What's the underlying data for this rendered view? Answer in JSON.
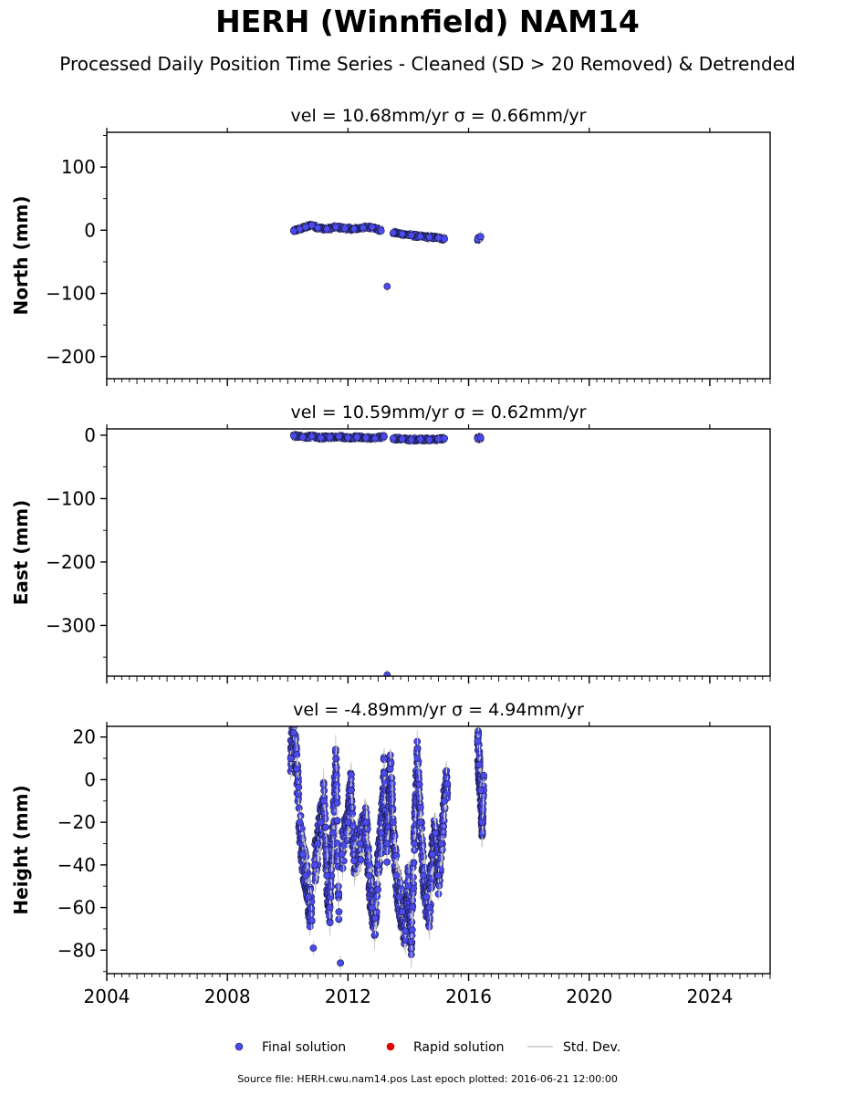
{
  "figure": {
    "title": "HERH (Winnfield) NAM14",
    "subtitle": "Processed Daily Position Time Series - Cleaned (SD > 20 Removed) & Detrended",
    "source_text": "Source file: HERH.cwu.nam14.pos  Last epoch plotted: 2016-06-21 12:00:00"
  },
  "colors": {
    "final": "#4a4af0",
    "final_edge": "#1a1a40",
    "rapid": "#e00000",
    "stddev": "#c8c8c8"
  },
  "legend": {
    "placement": "bottom-center",
    "items": [
      {
        "label": "Final solution",
        "marker": "circle",
        "color": "#4a4af0"
      },
      {
        "label": "Rapid solution",
        "marker": "circle",
        "color": "#e00000"
      },
      {
        "label": "Std. Dev.",
        "marker": "line",
        "color": "#c8c8c8"
      }
    ]
  },
  "chart_data": [
    {
      "type": "scatter",
      "title": "vel = 10.68mm/yr   σ = 0.66mm/yr",
      "ylabel": "North (mm)",
      "xlim": [
        2004,
        2026
      ],
      "ylim": [
        -235,
        155
      ],
      "yticks": [
        100,
        0,
        -100,
        -200
      ],
      "xtick_labels_shown": false,
      "series": [
        {
          "x": 2010.2,
          "y": -1
        },
        {
          "x": 2010.4,
          "y": 2
        },
        {
          "x": 2010.6,
          "y": 5
        },
        {
          "x": 2010.8,
          "y": 8
        },
        {
          "x": 2011.0,
          "y": 4
        },
        {
          "x": 2011.3,
          "y": 2
        },
        {
          "x": 2011.6,
          "y": 5
        },
        {
          "x": 2011.9,
          "y": 3
        },
        {
          "x": 2012.2,
          "y": 2
        },
        {
          "x": 2012.5,
          "y": 4
        },
        {
          "x": 2012.8,
          "y": 5
        },
        {
          "x": 2013.1,
          "y": -1
        },
        {
          "x": 2013.3,
          "y": -89
        },
        {
          "x": 2013.5,
          "y": -4
        },
        {
          "x": 2013.8,
          "y": -6
        },
        {
          "x": 2014.1,
          "y": -8
        },
        {
          "x": 2014.4,
          "y": -10
        },
        {
          "x": 2014.7,
          "y": -11
        },
        {
          "x": 2015.0,
          "y": -12
        },
        {
          "x": 2015.2,
          "y": -14
        },
        {
          "x": 2016.3,
          "y": -14
        },
        {
          "x": 2016.4,
          "y": -10
        }
      ]
    },
    {
      "type": "scatter",
      "title": "vel = 10.59mm/yr   σ = 0.62mm/yr",
      "ylabel": "East (mm)",
      "xlim": [
        2004,
        2026
      ],
      "ylim": [
        -380,
        10
      ],
      "yticks": [
        0,
        -100,
        -200,
        -300
      ],
      "xtick_labels_shown": false,
      "series": [
        {
          "x": 2010.2,
          "y": -1
        },
        {
          "x": 2010.5,
          "y": -3
        },
        {
          "x": 2010.8,
          "y": -2
        },
        {
          "x": 2011.1,
          "y": -4
        },
        {
          "x": 2011.4,
          "y": -3
        },
        {
          "x": 2011.7,
          "y": -2
        },
        {
          "x": 2012.0,
          "y": -4
        },
        {
          "x": 2012.3,
          "y": -3
        },
        {
          "x": 2012.6,
          "y": -4
        },
        {
          "x": 2012.9,
          "y": -5
        },
        {
          "x": 2013.2,
          "y": -2
        },
        {
          "x": 2013.3,
          "y": -378
        },
        {
          "x": 2013.5,
          "y": -5
        },
        {
          "x": 2013.8,
          "y": -6
        },
        {
          "x": 2014.1,
          "y": -7
        },
        {
          "x": 2014.4,
          "y": -6
        },
        {
          "x": 2014.7,
          "y": -7
        },
        {
          "x": 2015.0,
          "y": -6
        },
        {
          "x": 2015.2,
          "y": -5
        },
        {
          "x": 2016.3,
          "y": -5
        },
        {
          "x": 2016.4,
          "y": -4
        }
      ]
    },
    {
      "type": "scatter",
      "title": "vel = -4.89mm/yr   σ = 4.94mm/yr",
      "ylabel": "Height (mm)",
      "xlabel": "",
      "xlim": [
        2004,
        2026
      ],
      "ylim": [
        -91,
        25
      ],
      "yticks": [
        20,
        0,
        -20,
        -40,
        -60,
        -80
      ],
      "xticks": [
        2004,
        2008,
        2012,
        2016,
        2020,
        2024
      ],
      "xtick_labels_shown": true,
      "series": [
        {
          "x": 2010.1,
          "y": 10
        },
        {
          "x": 2010.2,
          "y": 22
        },
        {
          "x": 2010.3,
          "y": 5
        },
        {
          "x": 2010.4,
          "y": -20
        },
        {
          "x": 2010.5,
          "y": -35
        },
        {
          "x": 2010.6,
          "y": -45
        },
        {
          "x": 2010.7,
          "y": -55
        },
        {
          "x": 2010.8,
          "y": -66
        },
        {
          "x": 2010.85,
          "y": -79
        },
        {
          "x": 2010.9,
          "y": -40
        },
        {
          "x": 2011.0,
          "y": -30
        },
        {
          "x": 2011.1,
          "y": -20
        },
        {
          "x": 2011.2,
          "y": -10
        },
        {
          "x": 2011.3,
          "y": -45
        },
        {
          "x": 2011.4,
          "y": -60
        },
        {
          "x": 2011.5,
          "y": -25
        },
        {
          "x": 2011.6,
          "y": 10
        },
        {
          "x": 2011.7,
          "y": -62
        },
        {
          "x": 2011.75,
          "y": -86
        },
        {
          "x": 2011.8,
          "y": -35
        },
        {
          "x": 2012.0,
          "y": -20
        },
        {
          "x": 2012.1,
          "y": -5
        },
        {
          "x": 2012.2,
          "y": -38
        },
        {
          "x": 2012.4,
          "y": -30
        },
        {
          "x": 2012.6,
          "y": -20
        },
        {
          "x": 2012.7,
          "y": -45
        },
        {
          "x": 2012.8,
          "y": -60
        },
        {
          "x": 2012.9,
          "y": -65
        },
        {
          "x": 2013.0,
          "y": -40
        },
        {
          "x": 2013.1,
          "y": -25
        },
        {
          "x": 2013.2,
          "y": 3
        },
        {
          "x": 2013.3,
          "y": -30
        },
        {
          "x": 2013.4,
          "y": 5
        },
        {
          "x": 2013.5,
          "y": -20
        },
        {
          "x": 2013.6,
          "y": -45
        },
        {
          "x": 2013.7,
          "y": -55
        },
        {
          "x": 2013.8,
          "y": -62
        },
        {
          "x": 2013.9,
          "y": -71
        },
        {
          "x": 2014.0,
          "y": -50
        },
        {
          "x": 2014.1,
          "y": -76
        },
        {
          "x": 2014.2,
          "y": -30
        },
        {
          "x": 2014.3,
          "y": 10
        },
        {
          "x": 2014.4,
          "y": -20
        },
        {
          "x": 2014.5,
          "y": -45
        },
        {
          "x": 2014.6,
          "y": -55
        },
        {
          "x": 2014.7,
          "y": -60
        },
        {
          "x": 2014.8,
          "y": -35
        },
        {
          "x": 2014.9,
          "y": -25
        },
        {
          "x": 2015.0,
          "y": -45
        },
        {
          "x": 2015.1,
          "y": -30
        },
        {
          "x": 2015.2,
          "y": -10
        },
        {
          "x": 2015.3,
          "y": -2
        },
        {
          "x": 2016.3,
          "y": 18
        },
        {
          "x": 2016.35,
          "y": 7
        },
        {
          "x": 2016.4,
          "y": -5
        },
        {
          "x": 2016.45,
          "y": -20
        },
        {
          "x": 2016.5,
          "y": 2
        }
      ]
    }
  ]
}
